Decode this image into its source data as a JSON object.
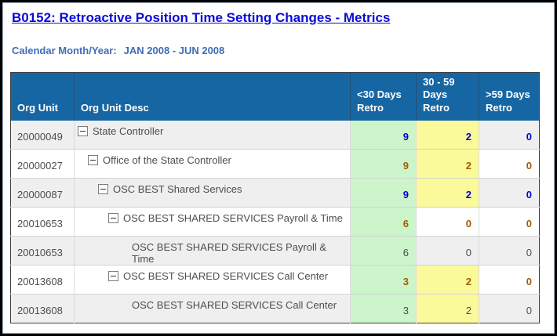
{
  "title": "B0152: Retroactive Position Time Setting Changes - Metrics",
  "subtitle": {
    "label": "Calendar Month/Year:",
    "value": "JAN 2008 - JUN 2008"
  },
  "icons": {
    "collapse_toggle": "minus-square-icon"
  },
  "colors": {
    "header_bg": "#1666a4",
    "header_text": "#ffffff",
    "title_blue": "#0b0bd6",
    "subtitle_blue": "#3f6cb6",
    "value_blue": "#0202ce",
    "value_orange": "#a55b00",
    "value_plain": "#4d4d4d",
    "cell_green": "#ccf5cb",
    "cell_yellow": "#fafa9b",
    "row_gray": "#efefef",
    "row_white": "#ffffff"
  },
  "table": {
    "columns": [
      "Org Unit",
      "Org Unit Desc",
      "<30 Days Retro",
      "30 - 59 Days Retro",
      ">59 Days Retro"
    ],
    "rows": [
      {
        "org_unit": "20000049",
        "desc": "State Controller",
        "level": 0,
        "has_toggle": true,
        "zebra": "gray",
        "value_style": "blue",
        "values": [
          "9",
          "2",
          "0"
        ],
        "cell_bg": [
          "green",
          "yellow",
          "plain"
        ]
      },
      {
        "org_unit": "20000027",
        "desc": "Office of the State Controller",
        "level": 1,
        "has_toggle": true,
        "zebra": "white",
        "value_style": "orange",
        "values": [
          "9",
          "2",
          "0"
        ],
        "cell_bg": [
          "green",
          "yellow",
          "plain"
        ]
      },
      {
        "org_unit": "20000087",
        "desc": "OSC BEST Shared Services",
        "level": 2,
        "has_toggle": true,
        "zebra": "gray",
        "value_style": "blue",
        "values": [
          "9",
          "2",
          "0"
        ],
        "cell_bg": [
          "green",
          "yellow",
          "plain"
        ]
      },
      {
        "org_unit": "20010653",
        "desc": "OSC BEST SHARED SERVICES Payroll & Time",
        "level": 3,
        "has_toggle": true,
        "zebra": "white",
        "value_style": "orange",
        "values": [
          "6",
          "0",
          "0"
        ],
        "cell_bg": [
          "green",
          "plain",
          "plain"
        ]
      },
      {
        "org_unit": "20010653",
        "desc": "OSC BEST SHARED SERVICES Payroll & Time",
        "level": 4,
        "has_toggle": false,
        "zebra": "gray",
        "value_style": "plain",
        "values": [
          "6",
          "0",
          "0"
        ],
        "cell_bg": [
          "green",
          "plain",
          "plain"
        ]
      },
      {
        "org_unit": "20013608",
        "desc": "OSC BEST SHARED SERVICES Call Center",
        "level": 3,
        "has_toggle": true,
        "zebra": "white",
        "value_style": "orange",
        "values": [
          "3",
          "2",
          "0"
        ],
        "cell_bg": [
          "green",
          "yellow",
          "plain"
        ]
      },
      {
        "org_unit": "20013608",
        "desc": "OSC BEST SHARED SERVICES Call Center",
        "level": 4,
        "has_toggle": false,
        "zebra": "gray",
        "value_style": "plain",
        "values": [
          "3",
          "2",
          "0"
        ],
        "cell_bg": [
          "green",
          "yellow",
          "plain"
        ]
      }
    ]
  }
}
